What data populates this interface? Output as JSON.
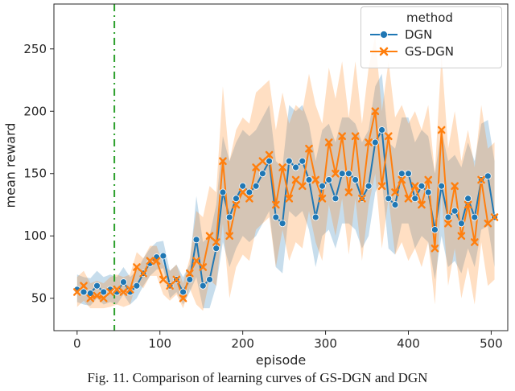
{
  "figure": {
    "caption": "Fig. 11. Comparison of learning curves of GS-DGN and DGN"
  },
  "chart_data": {
    "type": "line",
    "title": "",
    "xlabel": "episode",
    "ylabel": "mean reward",
    "xlim": [
      -28,
      520
    ],
    "ylim": [
      24,
      286
    ],
    "x_ticks": [
      0,
      100,
      200,
      300,
      400,
      500
    ],
    "y_ticks": [
      50,
      100,
      150,
      200,
      250
    ],
    "grid": false,
    "band_alpha": 0.25,
    "vline": {
      "x": 45,
      "color": "#2ca02c",
      "style": "dashdot"
    },
    "legend": {
      "title": "method",
      "position": "upper right"
    },
    "x": [
      0,
      8,
      16,
      24,
      32,
      40,
      48,
      56,
      64,
      72,
      80,
      88,
      96,
      104,
      112,
      120,
      128,
      136,
      144,
      152,
      160,
      168,
      176,
      184,
      192,
      200,
      208,
      216,
      224,
      232,
      240,
      248,
      256,
      264,
      272,
      280,
      288,
      296,
      304,
      312,
      320,
      328,
      336,
      344,
      352,
      360,
      368,
      376,
      384,
      392,
      400,
      408,
      416,
      424,
      432,
      440,
      448,
      456,
      464,
      472,
      480,
      488,
      496,
      504
    ],
    "series": [
      {
        "name": "DGN",
        "color": "#1f77b4",
        "marker": "circle",
        "values": [
          57,
          55,
          54,
          60,
          55,
          57,
          55,
          63,
          55,
          60,
          70,
          78,
          83,
          84,
          60,
          65,
          55,
          65,
          97,
          60,
          65,
          90,
          135,
          115,
          130,
          140,
          135,
          140,
          150,
          160,
          115,
          110,
          160,
          155,
          160,
          145,
          115,
          140,
          145,
          130,
          150,
          150,
          145,
          130,
          140,
          175,
          185,
          130,
          125,
          150,
          150,
          130,
          140,
          135,
          105,
          140,
          115,
          120,
          110,
          130,
          115,
          145,
          148,
          115
        ],
        "band_lower": [
          47,
          45,
          44,
          50,
          45,
          47,
          45,
          53,
          45,
          50,
          60,
          68,
          73,
          74,
          50,
          55,
          45,
          55,
          67,
          42,
          42,
          60,
          95,
          75,
          90,
          100,
          95,
          100,
          110,
          120,
          75,
          70,
          120,
          115,
          120,
          105,
          75,
          100,
          105,
          90,
          110,
          110,
          105,
          90,
          100,
          135,
          145,
          90,
          85,
          110,
          110,
          90,
          100,
          95,
          65,
          100,
          75,
          80,
          70,
          90,
          75,
          105,
          108,
          75
        ],
        "band_upper": [
          69,
          67,
          66,
          72,
          67,
          69,
          67,
          75,
          67,
          72,
          82,
          90,
          95,
          96,
          72,
          77,
          67,
          77,
          132,
          95,
          100,
          125,
          180,
          160,
          175,
          185,
          180,
          185,
          195,
          205,
          160,
          155,
          205,
          200,
          205,
          190,
          160,
          185,
          190,
          175,
          195,
          195,
          190,
          175,
          185,
          220,
          230,
          175,
          170,
          195,
          195,
          175,
          185,
          180,
          150,
          185,
          160,
          165,
          155,
          175,
          160,
          190,
          193,
          160
        ]
      },
      {
        "name": "GS-DGN",
        "color": "#ff7f0e",
        "marker": "x",
        "values": [
          55,
          60,
          50,
          52,
          50,
          55,
          57,
          55,
          57,
          75,
          70,
          80,
          80,
          65,
          60,
          65,
          50,
          70,
          80,
          75,
          100,
          95,
          160,
          100,
          125,
          135,
          130,
          155,
          160,
          165,
          125,
          155,
          130,
          145,
          140,
          170,
          145,
          130,
          175,
          150,
          180,
          135,
          180,
          130,
          175,
          200,
          140,
          180,
          135,
          145,
          130,
          140,
          125,
          145,
          90,
          185,
          110,
          140,
          100,
          125,
          95,
          145,
          110,
          115
        ],
        "band_lower": [
          43,
          48,
          42,
          42,
          42,
          43,
          45,
          43,
          45,
          63,
          58,
          68,
          68,
          53,
          48,
          53,
          42,
          58,
          45,
          40,
          65,
          60,
          110,
          50,
          75,
          85,
          80,
          105,
          110,
          115,
          75,
          105,
          80,
          95,
          90,
          120,
          95,
          80,
          125,
          100,
          130,
          85,
          130,
          80,
          125,
          150,
          90,
          130,
          85,
          95,
          80,
          90,
          75,
          95,
          45,
          135,
          60,
          90,
          50,
          75,
          45,
          95,
          60,
          65
        ],
        "band_upper": [
          67,
          72,
          62,
          64,
          62,
          67,
          69,
          67,
          69,
          87,
          82,
          92,
          92,
          77,
          72,
          77,
          62,
          82,
          120,
          115,
          140,
          135,
          220,
          160,
          185,
          195,
          190,
          215,
          220,
          225,
          185,
          215,
          190,
          205,
          200,
          230,
          205,
          190,
          235,
          210,
          240,
          195,
          240,
          190,
          235,
          260,
          200,
          240,
          195,
          205,
          190,
          200,
          185,
          205,
          150,
          245,
          170,
          200,
          160,
          185,
          155,
          205,
          170,
          175
        ]
      }
    ]
  }
}
